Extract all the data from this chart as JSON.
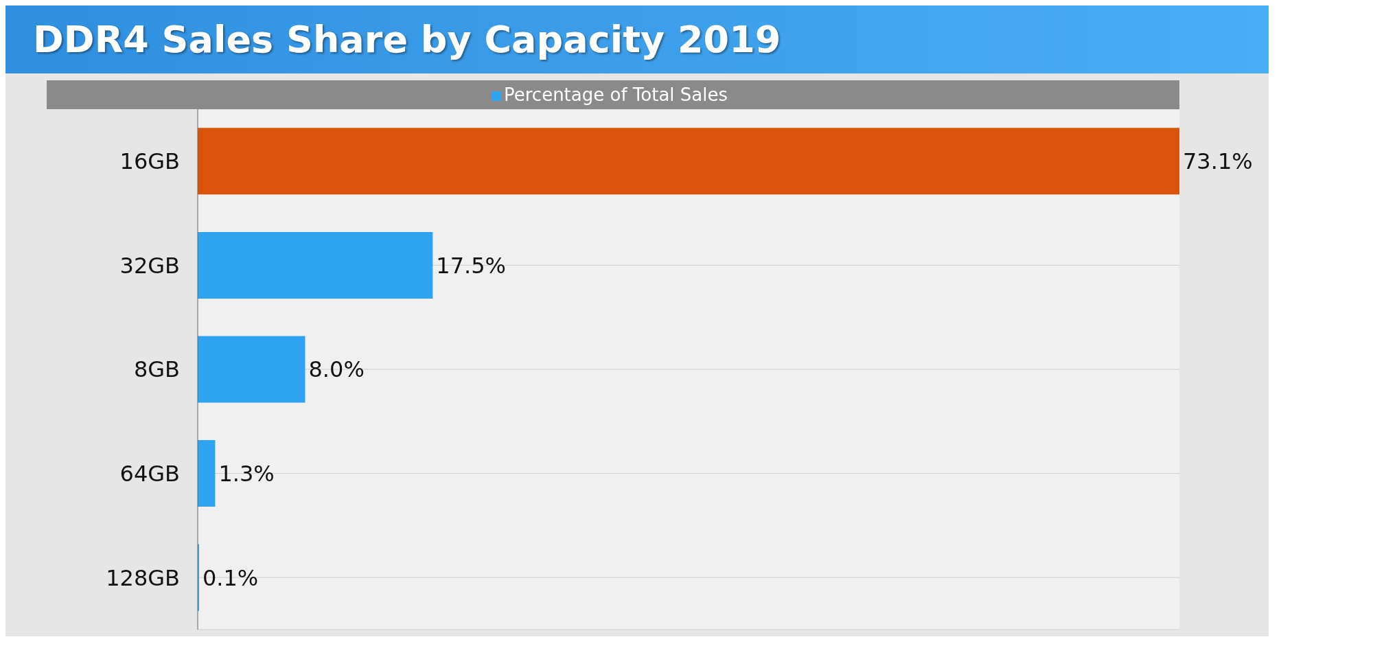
{
  "chart_data": {
    "type": "bar",
    "title": "DDR4 Sales Share by Capacity 2019",
    "orientation": "horizontal",
    "categories": [
      "16GB",
      "32GB",
      "8GB",
      "64GB",
      "128GB"
    ],
    "series": [
      {
        "name": "Percentage of Total Sales",
        "color": "#2ea3f2",
        "colors": [
          "#d9540a",
          "#2ea3f2",
          "#2ea3f2",
          "#2ea3f2",
          "#2ea3f2"
        ],
        "values": [
          73.1,
          17.5,
          8.0,
          1.3,
          0.1
        ],
        "value_labels": [
          "73.1%",
          "17.5%",
          "8.0%",
          "1.3%",
          "0.1%"
        ]
      }
    ],
    "legend": "top",
    "tick_labels": "y",
    "grid": "y"
  }
}
